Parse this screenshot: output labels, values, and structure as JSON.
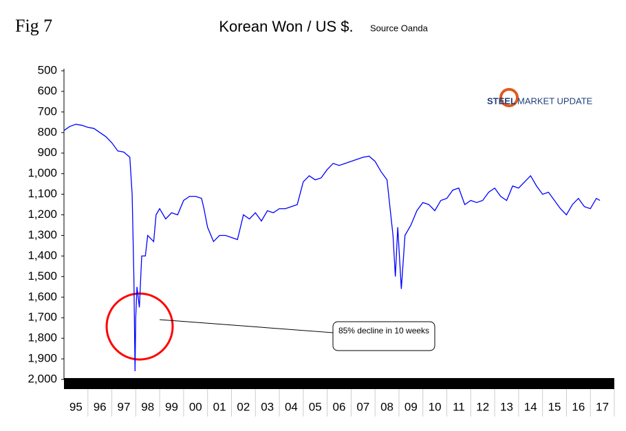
{
  "fig_label": "Fig 7",
  "logo": {
    "word1": "STEEL",
    "word2": "MARKET UPDATE"
  },
  "chart_data": {
    "type": "line",
    "title": "Korean Won / US $.",
    "subtitle": "Source Oanda",
    "annotation": {
      "text": "85% decline in 10 weeks"
    },
    "xlim": [
      1995,
      2018
    ],
    "xticks": [
      {
        "value": 1995.5,
        "label": "95"
      },
      {
        "value": 1996.5,
        "label": "96"
      },
      {
        "value": 1997.5,
        "label": "97"
      },
      {
        "value": 1998.5,
        "label": "98"
      },
      {
        "value": 1999.5,
        "label": "99"
      },
      {
        "value": 2000.5,
        "label": "00"
      },
      {
        "value": 2001.5,
        "label": "01"
      },
      {
        "value": 2002.5,
        "label": "02"
      },
      {
        "value": 2003.5,
        "label": "03"
      },
      {
        "value": 2004.5,
        "label": "04"
      },
      {
        "value": 2005.5,
        "label": "05"
      },
      {
        "value": 2006.5,
        "label": "06"
      },
      {
        "value": 2007.5,
        "label": "07"
      },
      {
        "value": 2008.5,
        "label": "08"
      },
      {
        "value": 2009.5,
        "label": "09"
      },
      {
        "value": 2010.5,
        "label": "10"
      },
      {
        "value": 2011.5,
        "label": "11"
      },
      {
        "value": 2012.5,
        "label": "12"
      },
      {
        "value": 2013.5,
        "label": "13"
      },
      {
        "value": 2014.5,
        "label": "14"
      },
      {
        "value": 2015.5,
        "label": "15"
      },
      {
        "value": 2016.5,
        "label": "16"
      },
      {
        "value": 2017.5,
        "label": "17"
      }
    ],
    "ylim": [
      2000,
      500
    ],
    "y_inverted": true,
    "yticks": [
      500,
      600,
      700,
      800,
      900,
      {
        "value": 1000,
        "label": "1,000"
      },
      {
        "value": 1100,
        "label": "1,100"
      },
      {
        "value": 1200,
        "label": "1,200"
      },
      {
        "value": 1300,
        "label": "1,300"
      },
      {
        "value": 1400,
        "label": "1,400"
      },
      {
        "value": 1500,
        "label": "1,500"
      },
      {
        "value": 1600,
        "label": "1,600"
      },
      {
        "value": 1700,
        "label": "1,700"
      },
      {
        "value": 1800,
        "label": "1,800"
      },
      {
        "value": 1900,
        "label": "1,900"
      },
      {
        "value": 2000,
        "label": "2,000"
      }
    ],
    "x": [
      1995,
      1995.25,
      1995.5,
      1995.75,
      1996,
      1996.25,
      1996.5,
      1996.75,
      1997,
      1997.25,
      1997.5,
      1997.75,
      1997.85,
      1997.92,
      1997.97,
      1998,
      1998.05,
      1998.15,
      1998.25,
      1998.4,
      1998.5,
      1998.75,
      1998.85,
      1999,
      1999.25,
      1999.5,
      1999.75,
      2000,
      2000.25,
      2000.5,
      2000.75,
      2000.85,
      2001,
      2001.25,
      2001.5,
      2001.75,
      2002,
      2002.25,
      2002.5,
      2002.75,
      2003,
      2003.25,
      2003.5,
      2003.75,
      2004,
      2004.25,
      2004.5,
      2004.75,
      2005,
      2005.25,
      2005.5,
      2005.75,
      2006,
      2006.25,
      2006.5,
      2006.75,
      2007,
      2007.25,
      2007.5,
      2007.75,
      2008,
      2008.25,
      2008.5,
      2008.75,
      2008.85,
      2008.95,
      2009.1,
      2009.25,
      2009.5,
      2009.75,
      2010,
      2010.25,
      2010.5,
      2010.75,
      2011,
      2011.25,
      2011.5,
      2011.75,
      2012,
      2012.25,
      2012.5,
      2012.75,
      2013,
      2013.25,
      2013.5,
      2013.75,
      2014,
      2014.25,
      2014.5,
      2014.75,
      2015,
      2015.25,
      2015.5,
      2015.75,
      2016,
      2016.25,
      2016.5,
      2016.75,
      2017,
      2017.25,
      2017.4
    ],
    "series": [
      {
        "color": "#0000ff",
        "values": [
          790,
          770,
          760,
          765,
          775,
          780,
          800,
          820,
          850,
          890,
          895,
          920,
          1100,
          1500,
          1960,
          1700,
          1550,
          1650,
          1400,
          1400,
          1300,
          1330,
          1200,
          1170,
          1220,
          1190,
          1200,
          1130,
          1110,
          1110,
          1120,
          1170,
          1260,
          1330,
          1300,
          1300,
          1310,
          1320,
          1200,
          1220,
          1190,
          1230,
          1180,
          1190,
          1170,
          1170,
          1160,
          1150,
          1040,
          1010,
          1030,
          1020,
          980,
          950,
          960,
          950,
          940,
          930,
          920,
          915,
          940,
          990,
          1030,
          1300,
          1500,
          1260,
          1560,
          1300,
          1250,
          1180,
          1140,
          1150,
          1180,
          1130,
          1120,
          1080,
          1070,
          1150,
          1130,
          1140,
          1130,
          1090,
          1070,
          1110,
          1130,
          1060,
          1070,
          1040,
          1010,
          1060,
          1100,
          1090,
          1130,
          1170,
          1200,
          1150,
          1120,
          1160,
          1170,
          1120,
          1130
        ]
      }
    ]
  }
}
